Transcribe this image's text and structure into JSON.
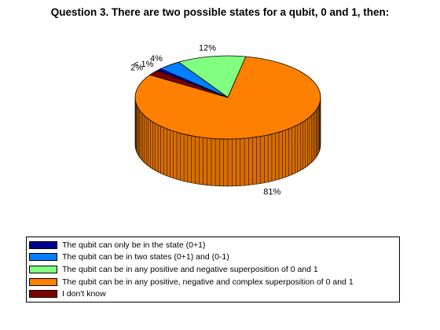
{
  "chart_data": {
    "type": "pie",
    "title": "Question 3. There are two possible states for a qubit, 0 and 1, then:",
    "three_d": true,
    "start_angle_deg": -140,
    "slices": [
      {
        "label": "The qubit can only be in the state (0+1)",
        "value": 1,
        "value_label": "< 1%",
        "color": "#00008f"
      },
      {
        "label": "The qubit can be in two states (0+1) and (0-1)",
        "value": 4,
        "value_label": "4%",
        "color": "#0080ff"
      },
      {
        "label": "The qubit can be in any positive and negative superposition of 0 and 1",
        "value": 12,
        "value_label": "12%",
        "color": "#80ff80"
      },
      {
        "label": "The qubit can be in any positive, negative and complex superposition of 0 and 1",
        "value": 81,
        "value_label": "81%",
        "color": "#ff8000"
      },
      {
        "label": "I don't know",
        "value": 2,
        "value_label": "2%",
        "color": "#800000"
      }
    ],
    "legend_position": "bottom"
  }
}
